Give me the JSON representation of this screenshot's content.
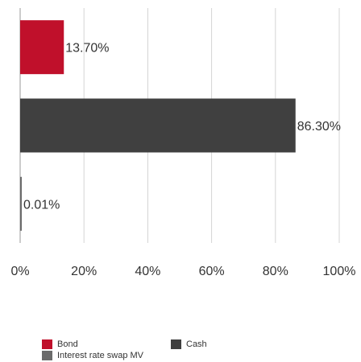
{
  "chart_data": {
    "type": "bar",
    "orientation": "horizontal",
    "categories": [
      "Bond",
      "Cash",
      "Interest rate swap MV"
    ],
    "values": [
      13.7,
      86.3,
      0.01
    ],
    "data_labels": [
      "13.70%",
      "86.30%",
      "0.01%"
    ],
    "colors": [
      "#c0102b",
      "#404040",
      "#6b6b6b"
    ],
    "xlim": [
      0,
      100
    ],
    "x_ticks": [
      0,
      20,
      40,
      60,
      80,
      100
    ],
    "x_tick_labels": [
      "0%",
      "20%",
      "40%",
      "60%",
      "80%",
      "100%"
    ],
    "grid": true,
    "legend_position": "bottom"
  },
  "legend": {
    "items": [
      {
        "label": "Bond",
        "color": "#c0102b"
      },
      {
        "label": "Cash",
        "color": "#404040"
      },
      {
        "label": "Interest rate swap MV",
        "color": "#6b6b6b"
      }
    ]
  }
}
